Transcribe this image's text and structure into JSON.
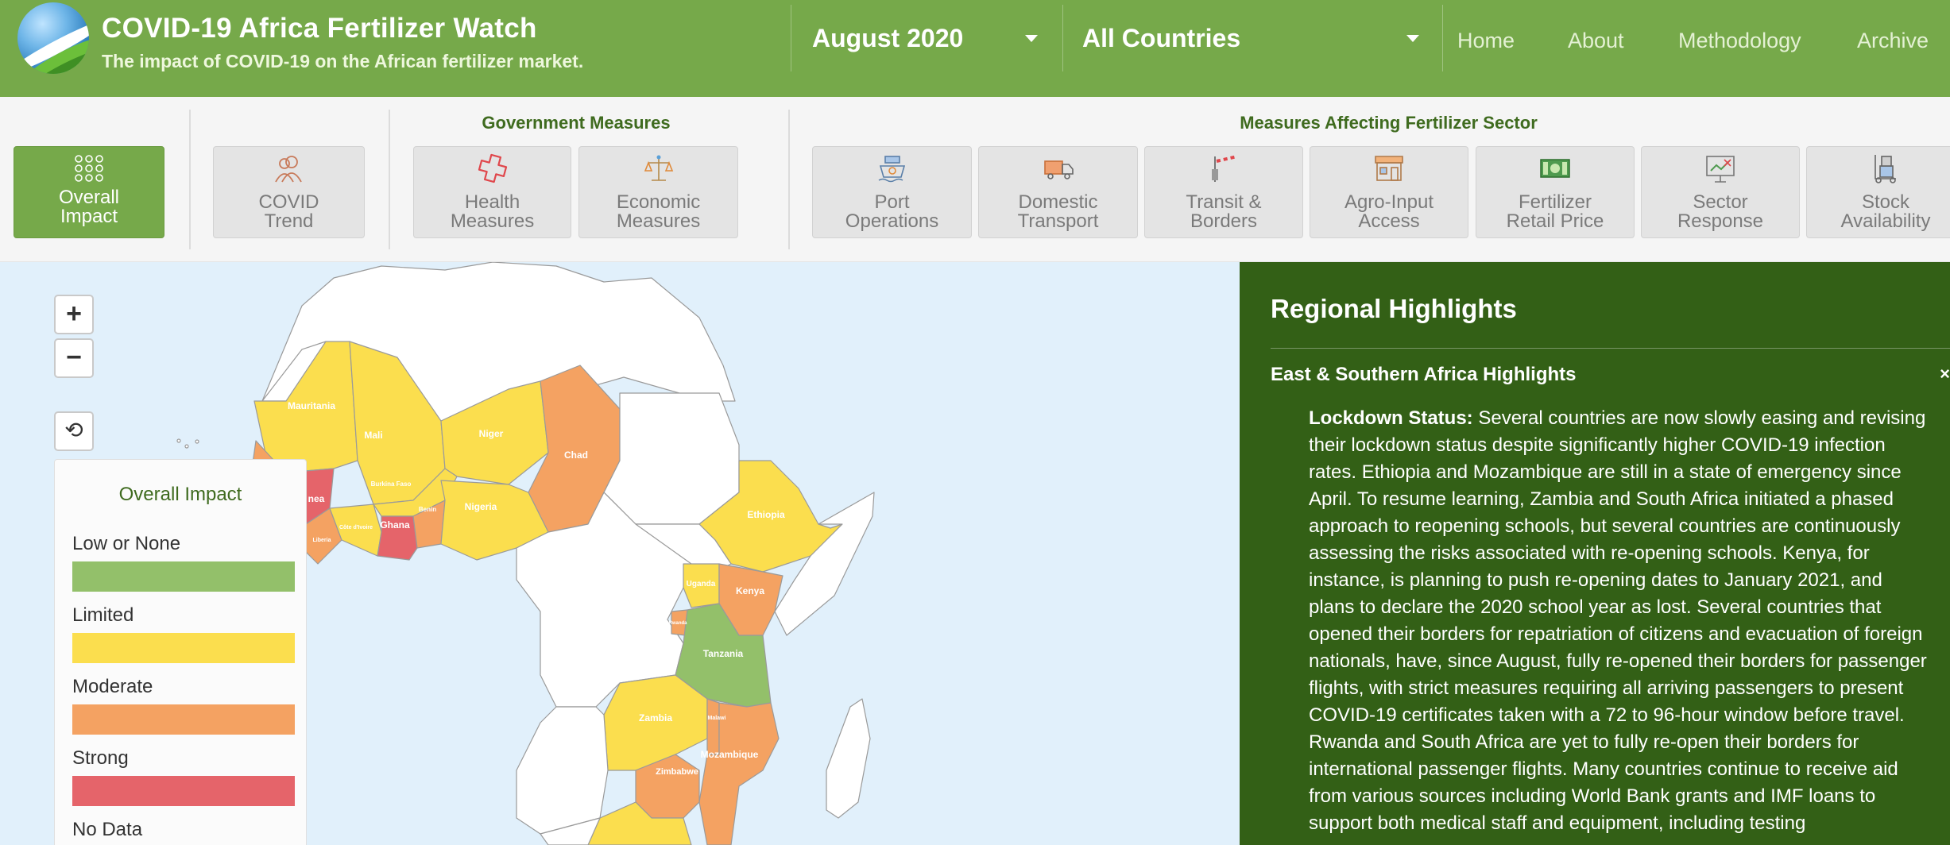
{
  "header": {
    "title": "COVID-19 Africa Fertilizer Watch",
    "subtitle": "The impact of COVID-19 on the African fertilizer market.",
    "month_select": "August 2020",
    "country_select": "All Countries",
    "nav": [
      "Home",
      "About",
      "Methodology",
      "Archive"
    ]
  },
  "toolbar": {
    "overall": "Overall\nImpact",
    "covid": "COVID\nTrend",
    "gov_title": "Government Measures",
    "gov_items": [
      "Health\nMeasures",
      "Economic\nMeasures"
    ],
    "sector_title": "Measures Affecting Fertilizer Sector",
    "sector_items": [
      "Port\nOperations",
      "Domestic\nTransport",
      "Transit &\nBorders",
      "Agro-Input\nAccess",
      "Fertilizer\nRetail Price",
      "Sector\nResponse",
      "Stock\nAvailability"
    ]
  },
  "map": {
    "zoom_in": "+",
    "zoom_out": "−",
    "reset": "⟲",
    "legend_title": "Overall Impact",
    "legend": [
      {
        "label": "Low or None",
        "color": "#93c06a"
      },
      {
        "label": "Limited",
        "color": "#fbde4e"
      },
      {
        "label": "Moderate",
        "color": "#f4a262"
      },
      {
        "label": "Strong",
        "color": "#e5646a"
      },
      {
        "label": "No Data",
        "color": "#c8c8c8"
      }
    ],
    "countries": {
      "mauritania": "Mauritania",
      "mali": "Mali",
      "niger": "Niger",
      "chad": "Chad",
      "guinea": "nea",
      "burkina": "Burkina Faso",
      "ghana": "Ghana",
      "benin": "Benin",
      "nigeria": "Nigeria",
      "ivory": "Côte d'Ivoire",
      "liberia": "Liberia",
      "ethiopia": "Ethiopia",
      "uganda": "Uganda",
      "kenya": "Kenya",
      "rwanda": "Rwanda",
      "tanzania": "Tanzania",
      "zambia": "Zambia",
      "malawi": "Malawi",
      "mozambique": "Mozambique",
      "zimbabwe": "Zimbabwe"
    }
  },
  "panel": {
    "title": "Regional Highlights",
    "section": "East & Southern Africa Highlights",
    "close": "×",
    "lead": "Lockdown Status:",
    "body": " Several countries are now slowly easing and revising their lockdown status despite significantly higher COVID-19 infection rates. Ethiopia and Mozambique are still in a state of emergency since April. To resume learning, Zambia and South Africa initiated a phased approach to reopening schools, but several countries are continuously assessing the risks associated with re-opening schools. Kenya, for instance, is planning to push re-opening dates to January 2021, and plans to declare the 2020 school year as lost. Several countries that opened their borders for repatriation of citizens and evacuation of foreign nationals, have, since August, fully re-opened their borders for passenger flights, with strict measures requiring all arriving passengers to present COVID-19 certificates taken with a 72 to 96-hour window before travel. Rwanda and South Africa are yet to fully re-open their borders for international passenger flights. Many countries continue to receive aid from various sources including World Bank grants and IMF loans to support both medical staff and equipment, including testing"
  }
}
